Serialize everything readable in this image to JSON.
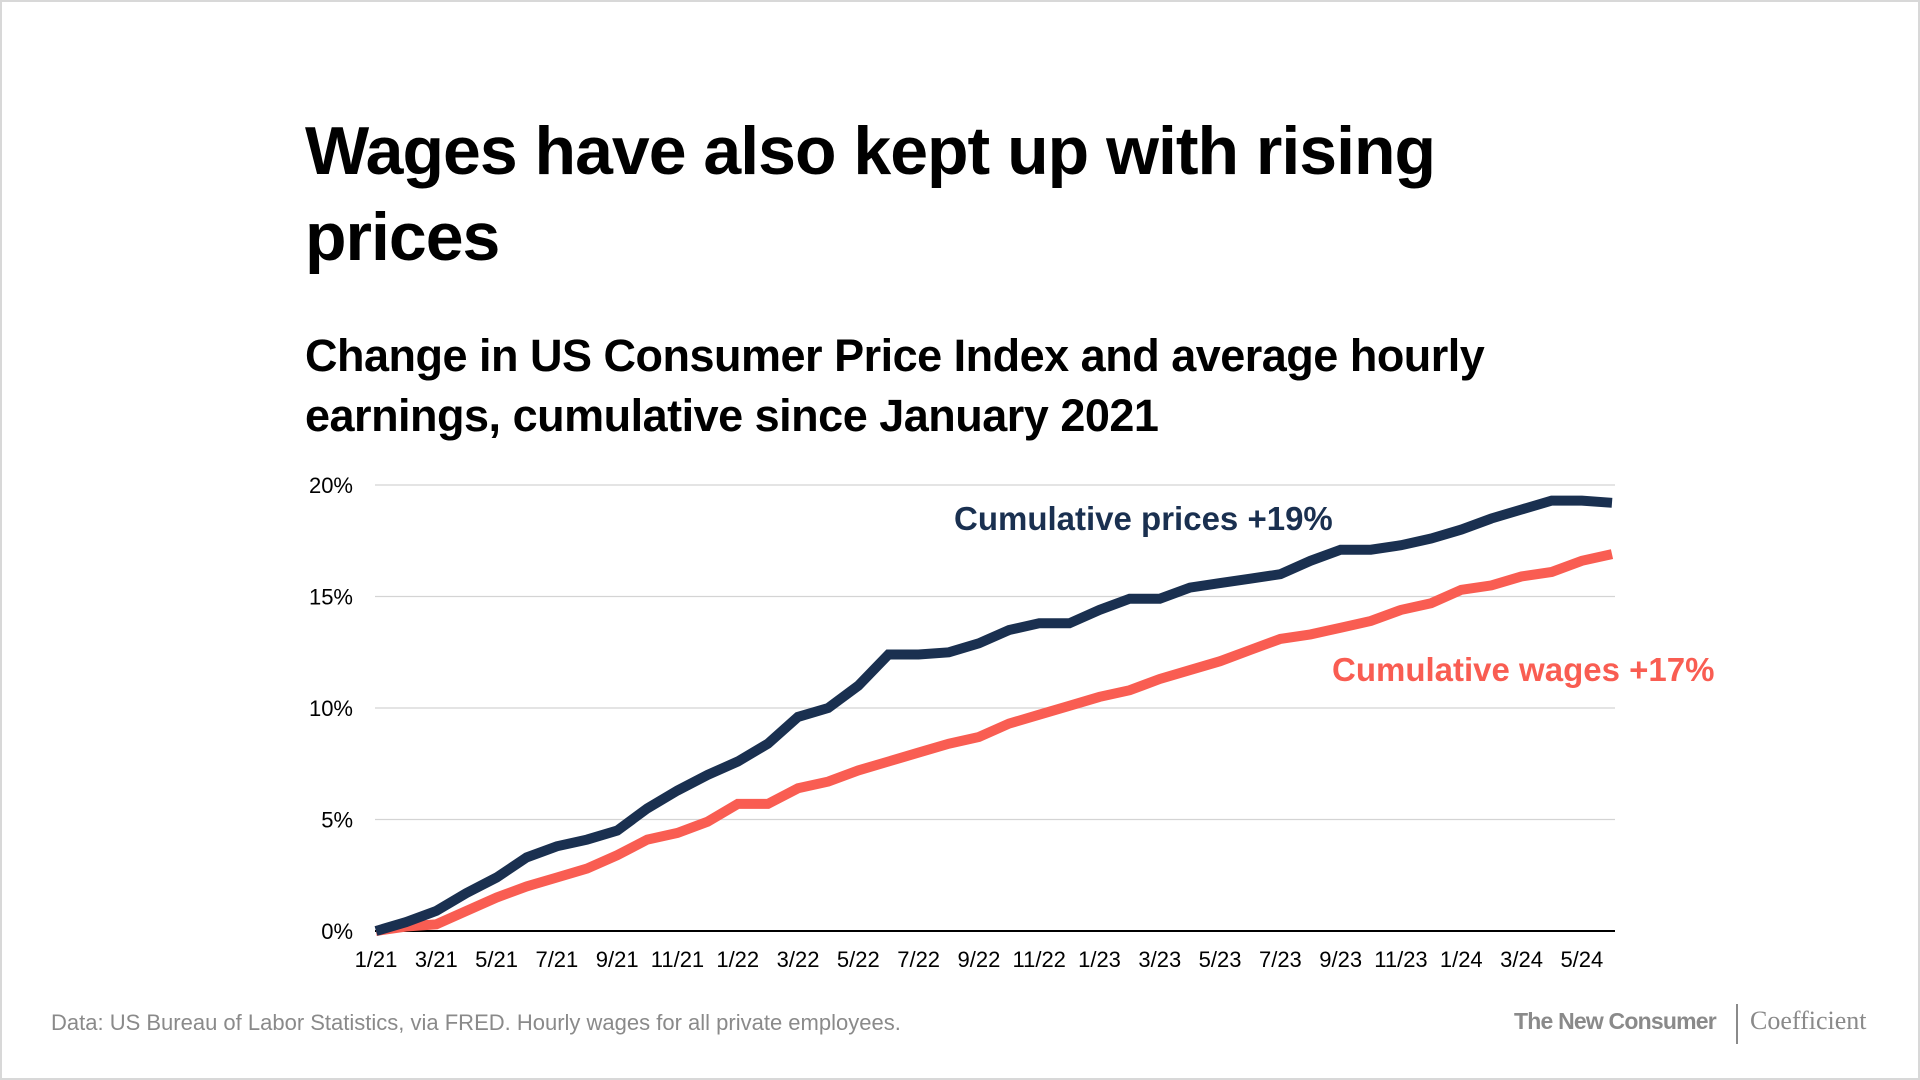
{
  "title": "Wages have also kept up with rising prices",
  "subtitle": "Change in US Consumer Price Index and average hourly earnings, cumulative since January 2021",
  "footer": {
    "note": "Data: US Bureau of Labor Statistics, via FRED. Hourly wages for all private employees.",
    "brand_primary": "The New Consumer",
    "brand_secondary": "Coefficient"
  },
  "chart_data": {
    "type": "line",
    "title": "Change in US Consumer Price Index and average hourly earnings, cumulative since January 2021",
    "xlabel": "",
    "ylabel": "",
    "ylim": [
      0,
      20
    ],
    "grid": true,
    "y_ticks": [
      "0%",
      "5%",
      "10%",
      "15%",
      "20%"
    ],
    "y_tick_values": [
      0,
      5,
      10,
      15,
      20
    ],
    "x_ticks": [
      "1/21",
      "3/21",
      "5/21",
      "7/21",
      "9/21",
      "11/21",
      "1/22",
      "3/22",
      "5/22",
      "7/22",
      "9/22",
      "11/22",
      "1/23",
      "3/23",
      "5/23",
      "7/23",
      "9/23",
      "11/23",
      "1/24",
      "3/24",
      "5/24"
    ],
    "x": [
      "1/21",
      "2/21",
      "3/21",
      "4/21",
      "5/21",
      "6/21",
      "7/21",
      "8/21",
      "9/21",
      "10/21",
      "11/21",
      "12/21",
      "1/22",
      "2/22",
      "3/22",
      "4/22",
      "5/22",
      "6/22",
      "7/22",
      "8/22",
      "9/22",
      "10/22",
      "11/22",
      "12/22",
      "1/23",
      "2/23",
      "3/23",
      "4/23",
      "5/23",
      "6/23",
      "7/23",
      "8/23",
      "9/23",
      "10/23",
      "11/23",
      "12/23",
      "1/24",
      "2/24",
      "3/24",
      "4/24",
      "5/24",
      "6/24"
    ],
    "series": [
      {
        "name": "Cumulative prices +19%",
        "color": "#1a3050",
        "values": [
          0,
          0.4,
          0.9,
          1.7,
          2.4,
          3.3,
          3.8,
          4.1,
          4.5,
          5.5,
          6.3,
          7.0,
          7.6,
          8.4,
          9.6,
          10.0,
          11.0,
          12.4,
          12.4,
          12.5,
          12.9,
          13.5,
          13.8,
          13.8,
          14.4,
          14.9,
          14.9,
          15.4,
          15.6,
          15.8,
          16.0,
          16.6,
          17.1,
          17.1,
          17.3,
          17.6,
          18.0,
          18.5,
          18.9,
          19.3,
          19.3,
          19.2
        ]
      },
      {
        "name": "Cumulative wages +17%",
        "color": "#f95d52",
        "values": [
          0,
          0.2,
          0.3,
          0.9,
          1.5,
          2.0,
          2.4,
          2.8,
          3.4,
          4.1,
          4.4,
          4.9,
          5.7,
          5.7,
          6.4,
          6.7,
          7.2,
          7.6,
          8.0,
          8.4,
          8.7,
          9.3,
          9.7,
          10.1,
          10.5,
          10.8,
          11.3,
          11.7,
          12.1,
          12.6,
          13.1,
          13.3,
          13.6,
          13.9,
          14.4,
          14.7,
          15.3,
          15.5,
          15.9,
          16.1,
          16.6,
          16.9
        ]
      }
    ]
  }
}
